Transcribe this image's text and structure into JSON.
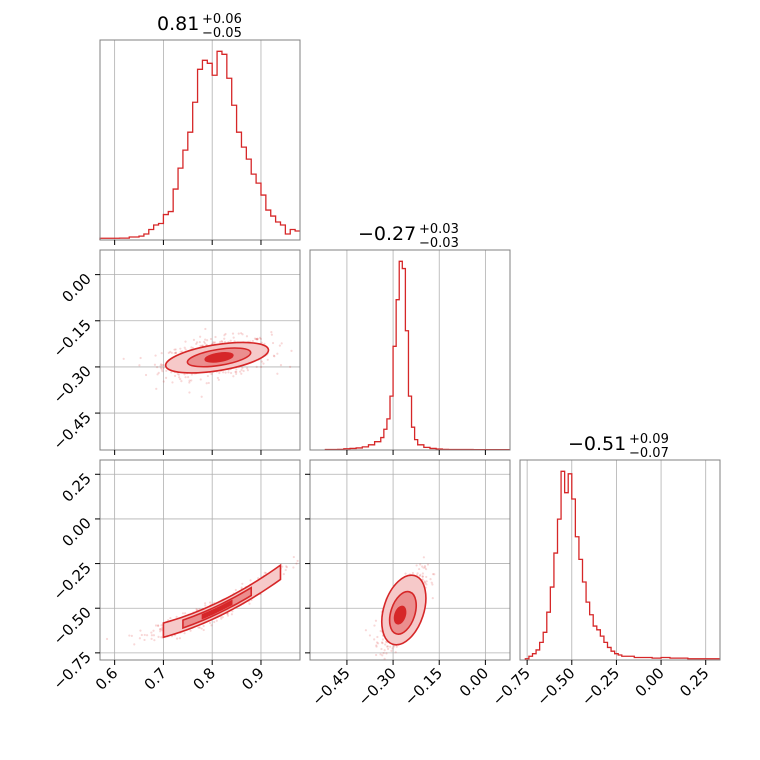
{
  "colors": {
    "accent": "#d62728",
    "fill_light": "#f6c9c9",
    "fill_mid": "#eb8e8e",
    "grid": "#b0b0b0",
    "frame": "#808080"
  },
  "chart_data": {
    "type": "corner",
    "grid": true,
    "panels": [
      {
        "id": "hist-x",
        "type": "histogram",
        "title_value": "0.81",
        "title_plus": "+0.06",
        "title_minus": "−0.05",
        "xlim": [
          0.57,
          0.98
        ],
        "bins": [
          [
            0.57,
            0.58
          ],
          [
            0.61,
            0.63
          ],
          [
            0.63,
            1.0
          ],
          [
            0.64,
            1.0
          ],
          [
            0.65,
            1.3
          ],
          [
            0.66,
            2.0
          ],
          [
            0.67,
            3.5
          ],
          [
            0.68,
            5.0
          ],
          [
            0.69,
            5.5
          ],
          [
            0.7,
            8.5
          ],
          [
            0.71,
            9.5
          ],
          [
            0.72,
            17
          ],
          [
            0.73,
            24
          ],
          [
            0.74,
            30
          ],
          [
            0.75,
            36
          ],
          [
            0.76,
            46
          ],
          [
            0.77,
            57
          ],
          [
            0.78,
            60
          ],
          [
            0.79,
            59
          ],
          [
            0.8,
            55
          ],
          [
            0.81,
            63
          ],
          [
            0.82,
            62
          ],
          [
            0.83,
            54
          ],
          [
            0.84,
            45
          ],
          [
            0.85,
            36
          ],
          [
            0.86,
            31
          ],
          [
            0.87,
            27
          ],
          [
            0.88,
            22
          ],
          [
            0.89,
            19
          ],
          [
            0.9,
            15
          ],
          [
            0.91,
            10
          ],
          [
            0.92,
            8
          ],
          [
            0.93,
            6
          ],
          [
            0.94,
            5
          ],
          [
            0.95,
            2
          ],
          [
            0.96,
            3.5
          ],
          [
            0.97,
            3
          ]
        ],
        "xticks": [
          0.6,
          0.7,
          0.8,
          0.9
        ]
      },
      {
        "id": "scatter-yx",
        "type": "2d-density",
        "xlim": [
          0.57,
          0.98
        ],
        "ylim": [
          -0.57,
          0.08
        ],
        "yticks": [
          0.0,
          -0.15,
          -0.3,
          -0.45
        ],
        "ytick_labels": [
          "0.00",
          "−0.15",
          "−0.30",
          "−0.45"
        ],
        "xticks": [
          0.6,
          0.7,
          0.8,
          0.9
        ],
        "center": [
          0.81,
          -0.27
        ]
      },
      {
        "id": "hist-y",
        "type": "histogram",
        "title_value": "−0.27",
        "title_plus": "+0.03",
        "title_minus": "−0.03",
        "xlim": [
          -0.57,
          0.08
        ],
        "bins": [
          [
            -0.52,
            0.4
          ],
          [
            -0.5,
            0.5
          ],
          [
            -0.48,
            0.6
          ],
          [
            -0.46,
            1.2
          ],
          [
            -0.44,
            1.5
          ],
          [
            -0.42,
            2.0
          ],
          [
            -0.4,
            3.0
          ],
          [
            -0.38,
            5.0
          ],
          [
            -0.36,
            8.0
          ],
          [
            -0.34,
            12
          ],
          [
            -0.33,
            20
          ],
          [
            -0.32,
            30
          ],
          [
            -0.31,
            52
          ],
          [
            -0.3,
            100
          ],
          [
            -0.29,
            145
          ],
          [
            -0.28,
            182
          ],
          [
            -0.27,
            175
          ],
          [
            -0.26,
            115
          ],
          [
            -0.25,
            52
          ],
          [
            -0.24,
            22
          ],
          [
            -0.23,
            10
          ],
          [
            -0.22,
            5
          ],
          [
            -0.2,
            2.5
          ],
          [
            -0.18,
            1.5
          ],
          [
            -0.16,
            1.0
          ],
          [
            -0.14,
            0.6
          ],
          [
            -0.12,
            0.5
          ],
          [
            -0.1,
            0.4
          ],
          [
            -0.08,
            0.5
          ],
          [
            -0.06,
            0.4
          ],
          [
            -0.04,
            0.3
          ],
          [
            -0.02,
            0.3
          ],
          [
            0.0,
            0.3
          ],
          [
            0.02,
            0.3
          ]
        ],
        "xticks": [
          -0.45,
          -0.3,
          -0.15,
          0.0
        ]
      },
      {
        "id": "scatter-zx",
        "type": "2d-density",
        "xlim": [
          0.57,
          0.98
        ],
        "ylim": [
          -0.79,
          0.33
        ],
        "xticks": [
          0.6,
          0.7,
          0.8,
          0.9
        ],
        "xtick_labels": [
          "0.6",
          "0.7",
          "0.8",
          "0.9"
        ],
        "yticks": [
          0.25,
          0.0,
          -0.25,
          -0.5,
          -0.75
        ],
        "ytick_labels": [
          "0.25",
          "0.00",
          "−0.25",
          "−0.50",
          "−0.75"
        ]
      },
      {
        "id": "scatter-zy",
        "type": "2d-density",
        "xlim": [
          -0.57,
          0.08
        ],
        "ylim": [
          -0.79,
          0.33
        ],
        "xticks": [
          -0.45,
          -0.3,
          -0.15,
          0.0
        ],
        "xtick_labels": [
          "−0.45",
          "−0.30",
          "−0.15",
          "0.00"
        ],
        "yticks": [
          0.25,
          0.0,
          -0.25,
          -0.5,
          -0.75
        ],
        "center": [
          -0.27,
          -0.51
        ]
      },
      {
        "id": "hist-z",
        "type": "histogram",
        "title_value": "−0.51",
        "title_plus": "+0.09",
        "title_minus": "−0.07",
        "xlim": [
          -0.79,
          0.33
        ],
        "bins": [
          [
            -0.76,
            1
          ],
          [
            -0.74,
            3
          ],
          [
            -0.72,
            5
          ],
          [
            -0.7,
            8
          ],
          [
            -0.68,
            14
          ],
          [
            -0.66,
            22
          ],
          [
            -0.64,
            38
          ],
          [
            -0.62,
            58
          ],
          [
            -0.6,
            85
          ],
          [
            -0.58,
            112
          ],
          [
            -0.56,
            150
          ],
          [
            -0.54,
            133
          ],
          [
            -0.52,
            148
          ],
          [
            -0.5,
            128
          ],
          [
            -0.48,
            98
          ],
          [
            -0.46,
            80
          ],
          [
            -0.44,
            62
          ],
          [
            -0.42,
            46
          ],
          [
            -0.4,
            36
          ],
          [
            -0.38,
            27
          ],
          [
            -0.36,
            24
          ],
          [
            -0.34,
            19
          ],
          [
            -0.32,
            14
          ],
          [
            -0.3,
            10
          ],
          [
            -0.28,
            7
          ],
          [
            -0.26,
            5
          ],
          [
            -0.24,
            4
          ],
          [
            -0.22,
            3
          ],
          [
            -0.2,
            3
          ],
          [
            -0.15,
            2
          ],
          [
            -0.1,
            2
          ],
          [
            -0.05,
            1.5
          ],
          [
            0.0,
            2
          ],
          [
            0.05,
            1.5
          ],
          [
            0.1,
            1.5
          ],
          [
            0.15,
            1
          ],
          [
            0.2,
            1
          ],
          [
            0.25,
            1
          ]
        ],
        "xticks": [
          -0.75,
          -0.5,
          -0.25,
          0.0,
          0.25
        ],
        "xtick_labels": [
          "−0.75",
          "−0.50",
          "−0.25",
          "0.00",
          "0.25"
        ]
      }
    ]
  }
}
